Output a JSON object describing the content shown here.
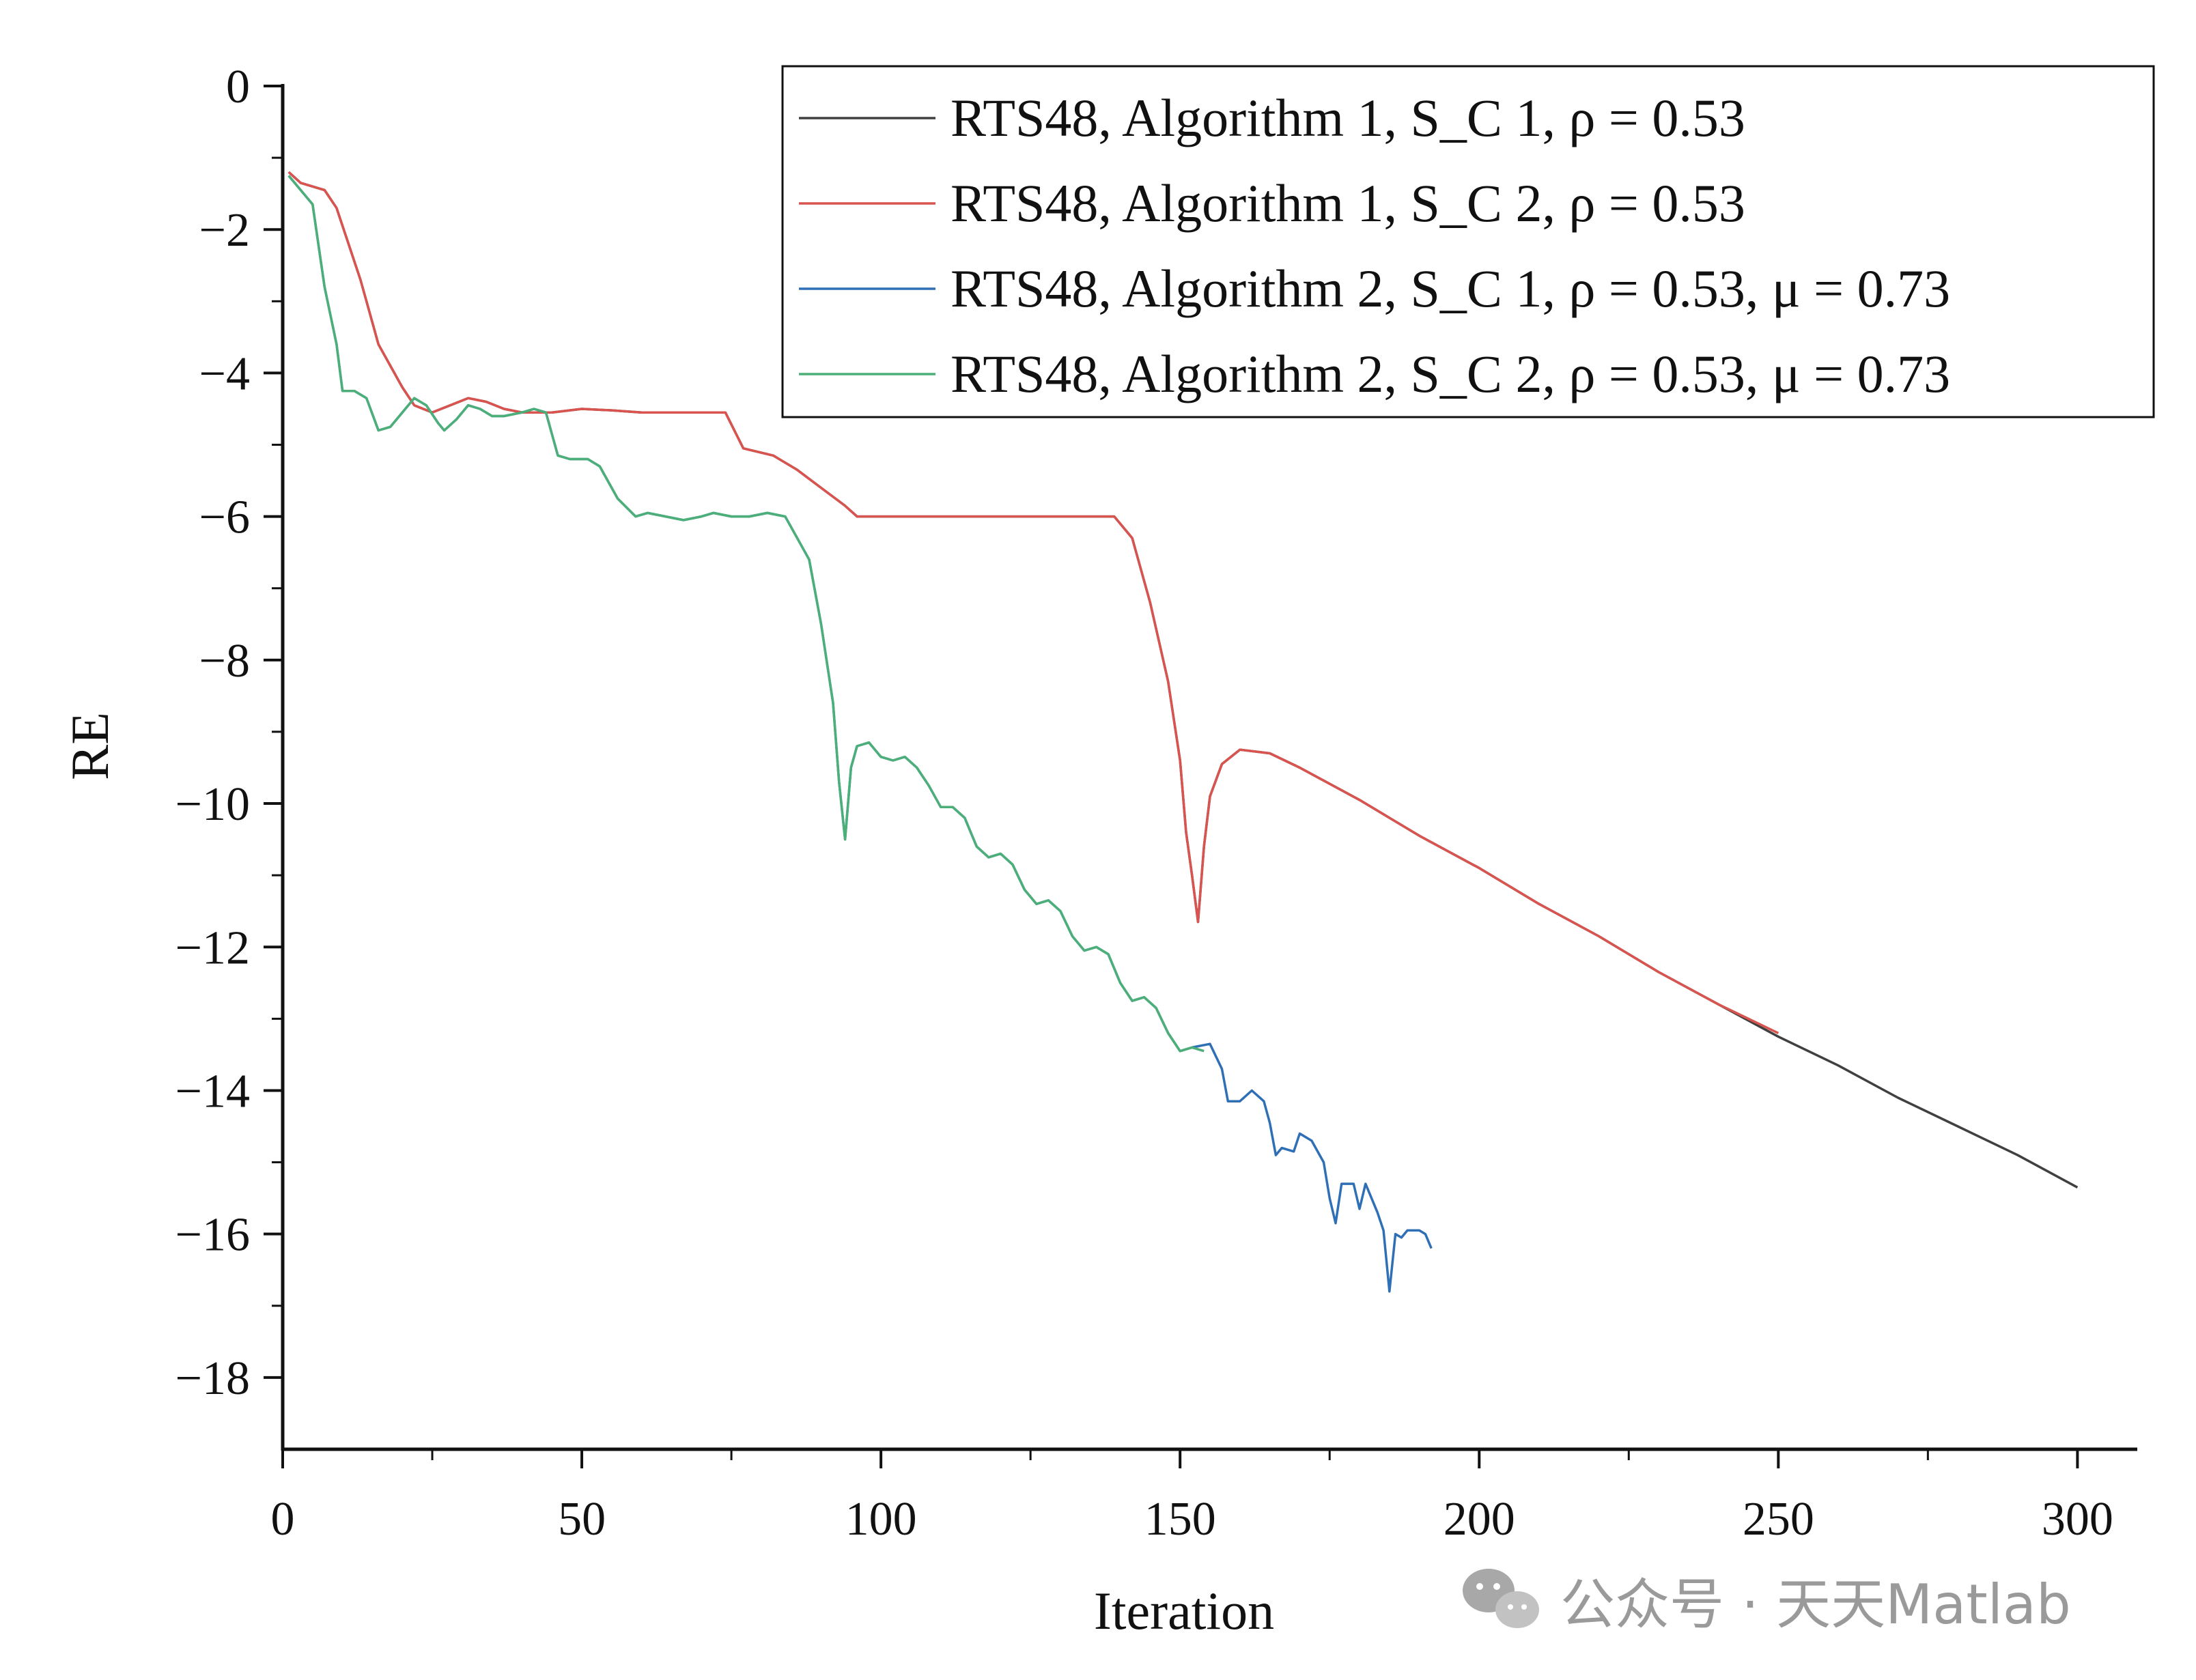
{
  "watermark": {
    "text": "公众号 · 天天Matlab"
  },
  "chart_data": {
    "type": "line",
    "title": "",
    "xlabel": "Iteration",
    "ylabel": "RE",
    "xlim": [
      0,
      310
    ],
    "ylim": [
      -19,
      0
    ],
    "xticks": [
      0,
      50,
      100,
      150,
      200,
      250,
      300
    ],
    "yticks": [
      0,
      -2,
      -4,
      -6,
      -8,
      -10,
      -12,
      -14,
      -16,
      -18
    ],
    "xtick_labels": [
      "0",
      "50",
      "100",
      "150",
      "200",
      "250",
      "300"
    ],
    "ytick_labels": [
      "0",
      "−2",
      "−4",
      "−6",
      "−8",
      "−10",
      "−12",
      "−14",
      "−16",
      "−18"
    ],
    "legend_position": "top-right",
    "grid": false,
    "series": [
      {
        "name": "RTS48, Algorithm 1, S_C 1, ρ = 0.53",
        "color": "#404040",
        "points": [
          [
            1,
            -1.2
          ],
          [
            3,
            -1.35
          ],
          [
            7,
            -1.45
          ],
          [
            9,
            -1.7
          ],
          [
            11,
            -2.2
          ],
          [
            13,
            -2.7
          ],
          [
            14,
            -3.0
          ],
          [
            16,
            -3.6
          ],
          [
            18,
            -3.9
          ],
          [
            20,
            -4.2
          ],
          [
            22,
            -4.45
          ],
          [
            25,
            -4.55
          ],
          [
            28,
            -4.45
          ],
          [
            31,
            -4.35
          ],
          [
            34,
            -4.4
          ],
          [
            37,
            -4.5
          ],
          [
            40,
            -4.55
          ],
          [
            45,
            -4.55
          ],
          [
            50,
            -4.5
          ],
          [
            55,
            -4.52
          ],
          [
            60,
            -4.55
          ],
          [
            70,
            -4.55
          ],
          [
            74,
            -4.55
          ],
          [
            77,
            -5.05
          ],
          [
            82,
            -5.15
          ],
          [
            86,
            -5.35
          ],
          [
            90,
            -5.6
          ],
          [
            94,
            -5.85
          ],
          [
            96,
            -6.0
          ],
          [
            100,
            -6.0
          ],
          [
            110,
            -6.0
          ],
          [
            125,
            -6.0
          ],
          [
            139,
            -6.0
          ],
          [
            142,
            -6.3
          ],
          [
            145,
            -7.2
          ],
          [
            148,
            -8.3
          ],
          [
            150,
            -9.4
          ],
          [
            151,
            -10.4
          ],
          [
            152,
            -11.0
          ],
          [
            153,
            -11.65
          ],
          [
            154,
            -10.6
          ],
          [
            155,
            -9.9
          ],
          [
            157,
            -9.45
          ],
          [
            160,
            -9.25
          ],
          [
            165,
            -9.3
          ],
          [
            170,
            -9.5
          ],
          [
            180,
            -9.95
          ],
          [
            190,
            -10.45
          ],
          [
            200,
            -10.9
          ],
          [
            210,
            -11.4
          ],
          [
            220,
            -11.85
          ],
          [
            230,
            -12.35
          ],
          [
            240,
            -12.8
          ],
          [
            250,
            -13.25
          ],
          [
            260,
            -13.65
          ],
          [
            270,
            -14.1
          ],
          [
            280,
            -14.5
          ],
          [
            290,
            -14.9
          ],
          [
            300,
            -15.35
          ]
        ]
      },
      {
        "name": "RTS48, Algorithm 1, S_C 2, ρ = 0.53",
        "color": "#d9534f",
        "points": [
          [
            1,
            -1.2
          ],
          [
            3,
            -1.35
          ],
          [
            7,
            -1.45
          ],
          [
            9,
            -1.7
          ],
          [
            11,
            -2.2
          ],
          [
            13,
            -2.7
          ],
          [
            14,
            -3.0
          ],
          [
            16,
            -3.6
          ],
          [
            18,
            -3.9
          ],
          [
            20,
            -4.2
          ],
          [
            22,
            -4.45
          ],
          [
            25,
            -4.55
          ],
          [
            28,
            -4.45
          ],
          [
            31,
            -4.35
          ],
          [
            34,
            -4.4
          ],
          [
            37,
            -4.5
          ],
          [
            40,
            -4.55
          ],
          [
            45,
            -4.55
          ],
          [
            50,
            -4.5
          ],
          [
            55,
            -4.52
          ],
          [
            60,
            -4.55
          ],
          [
            70,
            -4.55
          ],
          [
            74,
            -4.55
          ],
          [
            77,
            -5.05
          ],
          [
            82,
            -5.15
          ],
          [
            86,
            -5.35
          ],
          [
            90,
            -5.6
          ],
          [
            94,
            -5.85
          ],
          [
            96,
            -6.0
          ],
          [
            100,
            -6.0
          ],
          [
            110,
            -6.0
          ],
          [
            125,
            -6.0
          ],
          [
            139,
            -6.0
          ],
          [
            142,
            -6.3
          ],
          [
            145,
            -7.2
          ],
          [
            148,
            -8.3
          ],
          [
            150,
            -9.4
          ],
          [
            151,
            -10.4
          ],
          [
            152,
            -11.0
          ],
          [
            153,
            -11.65
          ],
          [
            154,
            -10.6
          ],
          [
            155,
            -9.9
          ],
          [
            157,
            -9.45
          ],
          [
            160,
            -9.25
          ],
          [
            165,
            -9.3
          ],
          [
            170,
            -9.5
          ],
          [
            180,
            -9.95
          ],
          [
            190,
            -10.45
          ],
          [
            200,
            -10.9
          ],
          [
            210,
            -11.4
          ],
          [
            220,
            -11.85
          ],
          [
            230,
            -12.35
          ],
          [
            240,
            -12.8
          ],
          [
            250,
            -13.2
          ]
        ]
      },
      {
        "name": "RTS48, Algorithm 2, S_C 1, ρ = 0.53, μ = 0.73",
        "color": "#2f6fb5",
        "points": [
          [
            1,
            -1.25
          ],
          [
            3,
            -1.45
          ],
          [
            5,
            -1.65
          ],
          [
            7,
            -2.8
          ],
          [
            9,
            -3.6
          ],
          [
            10,
            -4.25
          ],
          [
            12,
            -4.25
          ],
          [
            14,
            -4.35
          ],
          [
            16,
            -4.8
          ],
          [
            18,
            -4.75
          ],
          [
            20,
            -4.55
          ],
          [
            22,
            -4.35
          ],
          [
            24,
            -4.45
          ],
          [
            26,
            -4.7
          ],
          [
            27,
            -4.8
          ],
          [
            29,
            -4.65
          ],
          [
            31,
            -4.45
          ],
          [
            33,
            -4.5
          ],
          [
            35,
            -4.6
          ],
          [
            37,
            -4.6
          ],
          [
            40,
            -4.55
          ],
          [
            42,
            -4.5
          ],
          [
            44,
            -4.55
          ],
          [
            46,
            -5.15
          ],
          [
            48,
            -5.2
          ],
          [
            51,
            -5.2
          ],
          [
            53,
            -5.3
          ],
          [
            56,
            -5.75
          ],
          [
            59,
            -6.0
          ],
          [
            61,
            -5.95
          ],
          [
            64,
            -6.0
          ],
          [
            67,
            -6.05
          ],
          [
            70,
            -6.0
          ],
          [
            72,
            -5.95
          ],
          [
            75,
            -6.0
          ],
          [
            78,
            -6.0
          ],
          [
            81,
            -5.95
          ],
          [
            84,
            -6.0
          ],
          [
            86,
            -6.3
          ],
          [
            88,
            -6.6
          ],
          [
            90,
            -7.5
          ],
          [
            92,
            -8.6
          ],
          [
            93,
            -9.7
          ],
          [
            94,
            -10.5
          ],
          [
            95,
            -9.5
          ],
          [
            96,
            -9.2
          ],
          [
            98,
            -9.15
          ],
          [
            100,
            -9.35
          ],
          [
            102,
            -9.4
          ],
          [
            104,
            -9.35
          ],
          [
            106,
            -9.5
          ],
          [
            108,
            -9.75
          ],
          [
            110,
            -10.05
          ],
          [
            112,
            -10.05
          ],
          [
            114,
            -10.2
          ],
          [
            116,
            -10.6
          ],
          [
            118,
            -10.75
          ],
          [
            120,
            -10.7
          ],
          [
            122,
            -10.85
          ],
          [
            124,
            -11.2
          ],
          [
            126,
            -11.4
          ],
          [
            128,
            -11.35
          ],
          [
            130,
            -11.5
          ],
          [
            132,
            -11.85
          ],
          [
            134,
            -12.05
          ],
          [
            136,
            -12.0
          ],
          [
            138,
            -12.1
          ],
          [
            140,
            -12.5
          ],
          [
            142,
            -12.75
          ],
          [
            144,
            -12.7
          ],
          [
            146,
            -12.85
          ],
          [
            148,
            -13.2
          ],
          [
            150,
            -13.45
          ],
          [
            152,
            -13.4
          ],
          [
            155,
            -13.35
          ],
          [
            157,
            -13.7
          ],
          [
            158,
            -14.15
          ],
          [
            160,
            -14.15
          ],
          [
            162,
            -14.0
          ],
          [
            164,
            -14.15
          ],
          [
            165,
            -14.45
          ],
          [
            166,
            -14.9
          ],
          [
            167,
            -14.8
          ],
          [
            169,
            -14.85
          ],
          [
            170,
            -14.6
          ],
          [
            172,
            -14.7
          ],
          [
            174,
            -15.0
          ],
          [
            175,
            -15.5
          ],
          [
            176,
            -15.85
          ],
          [
            177,
            -15.3
          ],
          [
            179,
            -15.3
          ],
          [
            180,
            -15.65
          ],
          [
            181,
            -15.3
          ],
          [
            183,
            -15.7
          ],
          [
            184,
            -15.95
          ],
          [
            185,
            -16.8
          ],
          [
            186,
            -16.0
          ],
          [
            187,
            -16.05
          ],
          [
            188,
            -15.95
          ],
          [
            190,
            -15.95
          ],
          [
            191,
            -16.0
          ],
          [
            192,
            -16.2
          ]
        ]
      },
      {
        "name": "RTS48, Algorithm 2, S_C 2, ρ = 0.53, μ = 0.73",
        "color": "#4caf78",
        "points": [
          [
            1,
            -1.25
          ],
          [
            3,
            -1.45
          ],
          [
            5,
            -1.65
          ],
          [
            7,
            -2.8
          ],
          [
            9,
            -3.6
          ],
          [
            10,
            -4.25
          ],
          [
            12,
            -4.25
          ],
          [
            14,
            -4.35
          ],
          [
            16,
            -4.8
          ],
          [
            18,
            -4.75
          ],
          [
            20,
            -4.55
          ],
          [
            22,
            -4.35
          ],
          [
            24,
            -4.45
          ],
          [
            26,
            -4.7
          ],
          [
            27,
            -4.8
          ],
          [
            29,
            -4.65
          ],
          [
            31,
            -4.45
          ],
          [
            33,
            -4.5
          ],
          [
            35,
            -4.6
          ],
          [
            37,
            -4.6
          ],
          [
            40,
            -4.55
          ],
          [
            42,
            -4.5
          ],
          [
            44,
            -4.55
          ],
          [
            46,
            -5.15
          ],
          [
            48,
            -5.2
          ],
          [
            51,
            -5.2
          ],
          [
            53,
            -5.3
          ],
          [
            56,
            -5.75
          ],
          [
            59,
            -6.0
          ],
          [
            61,
            -5.95
          ],
          [
            64,
            -6.0
          ],
          [
            67,
            -6.05
          ],
          [
            70,
            -6.0
          ],
          [
            72,
            -5.95
          ],
          [
            75,
            -6.0
          ],
          [
            78,
            -6.0
          ],
          [
            81,
            -5.95
          ],
          [
            84,
            -6.0
          ],
          [
            86,
            -6.3
          ],
          [
            88,
            -6.6
          ],
          [
            90,
            -7.5
          ],
          [
            92,
            -8.6
          ],
          [
            93,
            -9.7
          ],
          [
            94,
            -10.5
          ],
          [
            95,
            -9.5
          ],
          [
            96,
            -9.2
          ],
          [
            98,
            -9.15
          ],
          [
            100,
            -9.35
          ],
          [
            102,
            -9.4
          ],
          [
            104,
            -9.35
          ],
          [
            106,
            -9.5
          ],
          [
            108,
            -9.75
          ],
          [
            110,
            -10.05
          ],
          [
            112,
            -10.05
          ],
          [
            114,
            -10.2
          ],
          [
            116,
            -10.6
          ],
          [
            118,
            -10.75
          ],
          [
            120,
            -10.7
          ],
          [
            122,
            -10.85
          ],
          [
            124,
            -11.2
          ],
          [
            126,
            -11.4
          ],
          [
            128,
            -11.35
          ],
          [
            130,
            -11.5
          ],
          [
            132,
            -11.85
          ],
          [
            134,
            -12.05
          ],
          [
            136,
            -12.0
          ],
          [
            138,
            -12.1
          ],
          [
            140,
            -12.5
          ],
          [
            142,
            -12.75
          ],
          [
            144,
            -12.7
          ],
          [
            146,
            -12.85
          ],
          [
            148,
            -13.2
          ],
          [
            150,
            -13.45
          ],
          [
            152,
            -13.4
          ],
          [
            154,
            -13.45
          ]
        ]
      }
    ]
  }
}
